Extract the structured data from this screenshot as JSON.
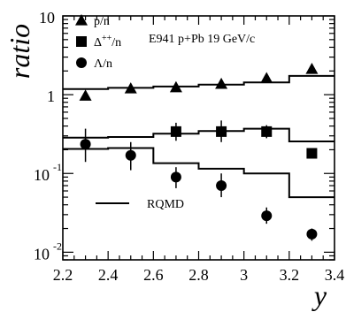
{
  "chart_data": {
    "type": "scatter",
    "annotation": "E941 p+Pb 19 GeV/c",
    "xlabel": "y",
    "ylabel": "ratio",
    "xlim": [
      2.2,
      3.4
    ],
    "ylim": [
      0.008,
      10
    ],
    "yscale": "log",
    "x_ticks": [
      "2.2",
      "2.4",
      "2.6",
      "2.8",
      "3",
      "3.2",
      "3.4"
    ],
    "y_tick_labels": [
      {
        "mantissa": "10",
        "exponent": "",
        "value": 10
      },
      {
        "mantissa": "1",
        "exponent": "",
        "value": 1
      },
      {
        "mantissa": "10",
        "exponent": "-1",
        "value": 0.1
      },
      {
        "mantissa": "10",
        "exponent": "-2",
        "value": 0.01
      }
    ],
    "legend": {
      "placement": "top-left"
    },
    "series": [
      {
        "name": "p/n",
        "marker": "triangle",
        "points": [
          {
            "x": 2.3,
            "y": 0.97
          },
          {
            "x": 2.5,
            "y": 1.2
          },
          {
            "x": 2.7,
            "y": 1.24
          },
          {
            "x": 2.9,
            "y": 1.37
          },
          {
            "x": 3.1,
            "y": 1.62
          },
          {
            "x": 3.3,
            "y": 2.12
          }
        ]
      },
      {
        "name": "Δ++/n",
        "legend_main": "Δ",
        "legend_sup": "++",
        "legend_tail": "/n",
        "marker": "square",
        "points": [
          {
            "x": 2.7,
            "y": 0.34,
            "ylo": 0.26,
            "yhi": 0.44
          },
          {
            "x": 2.9,
            "y": 0.34,
            "ylo": 0.25,
            "yhi": 0.47
          },
          {
            "x": 3.1,
            "y": 0.34,
            "ylo": 0.28,
            "yhi": 0.41
          },
          {
            "x": 3.3,
            "y": 0.18
          }
        ]
      },
      {
        "name": "Λ/n",
        "marker": "circle",
        "points": [
          {
            "x": 2.3,
            "y": 0.235,
            "ylo": 0.14,
            "yhi": 0.37
          },
          {
            "x": 2.5,
            "y": 0.17,
            "ylo": 0.11,
            "yhi": 0.25
          },
          {
            "x": 2.7,
            "y": 0.09,
            "ylo": 0.065,
            "yhi": 0.12
          },
          {
            "x": 2.9,
            "y": 0.07,
            "ylo": 0.05,
            "yhi": 0.1
          },
          {
            "x": 3.1,
            "y": 0.029,
            "ylo": 0.023,
            "yhi": 0.037
          },
          {
            "x": 3.3,
            "y": 0.017,
            "ylo": 0.014,
            "yhi": 0.02
          }
        ]
      }
    ],
    "model": {
      "name": "RQMD",
      "curves": [
        {
          "for": "p/n",
          "steps": [
            {
              "x0": 2.2,
              "x1": 2.4,
              "y": 1.18
            },
            {
              "x0": 2.4,
              "x1": 2.6,
              "y": 1.22
            },
            {
              "x0": 2.6,
              "x1": 2.8,
              "y": 1.27
            },
            {
              "x0": 2.8,
              "x1": 3.0,
              "y": 1.34
            },
            {
              "x0": 3.0,
              "x1": 3.2,
              "y": 1.43
            },
            {
              "x0": 3.2,
              "x1": 3.4,
              "y": 1.73
            }
          ]
        },
        {
          "for": "Δ++/n",
          "steps": [
            {
              "x0": 2.2,
              "x1": 2.4,
              "y": 0.285
            },
            {
              "x0": 2.4,
              "x1": 2.6,
              "y": 0.29
            },
            {
              "x0": 2.6,
              "x1": 2.8,
              "y": 0.32
            },
            {
              "x0": 2.8,
              "x1": 3.0,
              "y": 0.345
            },
            {
              "x0": 3.0,
              "x1": 3.2,
              "y": 0.37
            },
            {
              "x0": 3.2,
              "x1": 3.4,
              "y": 0.255
            }
          ]
        },
        {
          "for": "Λ/n",
          "steps": [
            {
              "x0": 2.2,
              "x1": 2.4,
              "y": 0.205
            },
            {
              "x0": 2.4,
              "x1": 2.6,
              "y": 0.21
            },
            {
              "x0": 2.6,
              "x1": 2.8,
              "y": 0.135
            },
            {
              "x0": 2.8,
              "x1": 3.0,
              "y": 0.115
            },
            {
              "x0": 3.0,
              "x1": 3.2,
              "y": 0.1
            },
            {
              "x0": 3.2,
              "x1": 3.4,
              "y": 0.05
            }
          ]
        }
      ]
    }
  }
}
